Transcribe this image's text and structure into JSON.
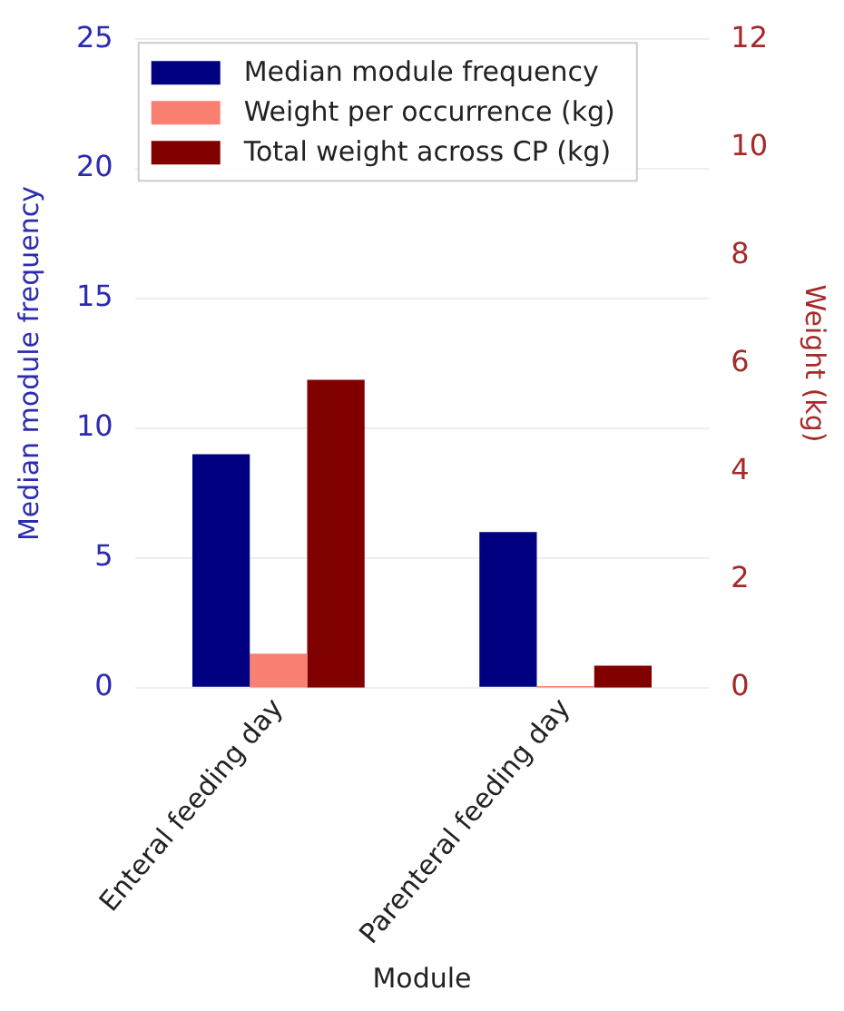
{
  "chart_data": {
    "type": "bar",
    "xlabel": "Module",
    "ylabel": "Median module frequency",
    "y2label": "Weight (kg)",
    "categories": [
      "Enteral feeding day",
      "Parenteral feeding day"
    ],
    "series": [
      {
        "name": "Median module frequency",
        "color": "#000080",
        "values": [
          9,
          6
        ]
      },
      {
        "name": "Weight per occurrence (kg)",
        "color": "#fa8072",
        "values": [
          0.63,
          0.03
        ],
        "axis": "y2"
      },
      {
        "name": "Total weight across CP (kg)",
        "color": "#800000",
        "values": [
          5.7,
          0.41
        ],
        "axis": "y2"
      }
    ],
    "ylim": [
      0,
      25
    ],
    "yticks": [
      0,
      5,
      10,
      15,
      20,
      25
    ],
    "y2lim": [
      0,
      12
    ],
    "y2ticks": [
      0,
      2,
      4,
      6,
      8,
      10,
      12
    ],
    "grid": "y",
    "legend": "top left"
  }
}
